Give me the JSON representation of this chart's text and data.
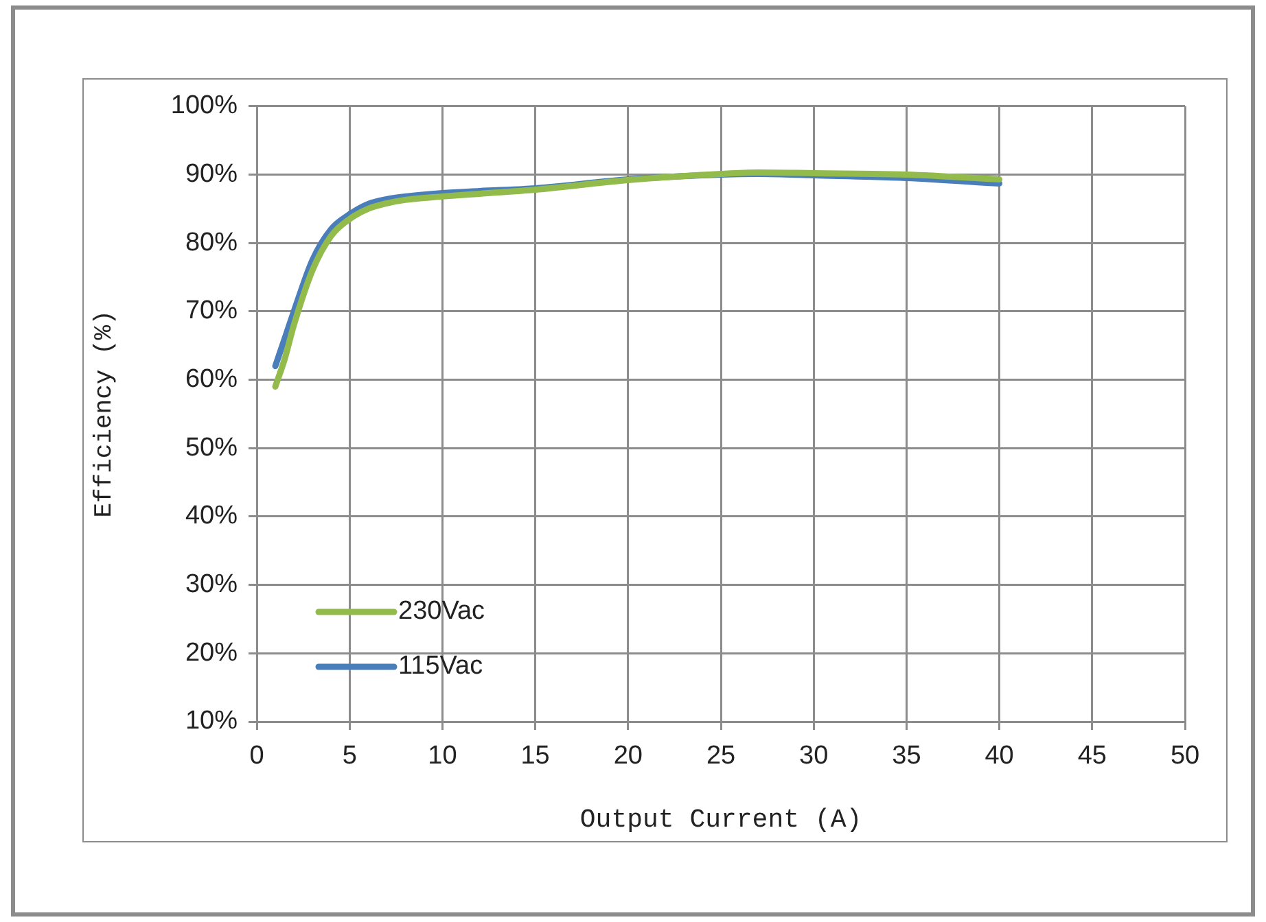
{
  "chart_data": {
    "type": "line",
    "xlabel": "Output Current (A)",
    "ylabel": "Efficiency (%)",
    "xlim": [
      0,
      50
    ],
    "xticks": [
      0,
      5,
      10,
      15,
      20,
      25,
      30,
      35,
      40,
      45,
      50
    ],
    "ylim": [
      10,
      100
    ],
    "yticks": [
      {
        "value": 10,
        "label": "10%"
      },
      {
        "value": 20,
        "label": "20%"
      },
      {
        "value": 30,
        "label": "30%"
      },
      {
        "value": 40,
        "label": "40%"
      },
      {
        "value": 50,
        "label": "50%"
      },
      {
        "value": 60,
        "label": "60%"
      },
      {
        "value": 70,
        "label": "70%"
      },
      {
        "value": 80,
        "label": "80%"
      },
      {
        "value": 90,
        "label": "90%"
      },
      {
        "value": 100,
        "label": "100%"
      }
    ],
    "grid": true,
    "legend": "bottom left",
    "marker": "none",
    "line_style": "solid",
    "x": [
      1,
      1.5,
      2,
      3,
      4,
      5,
      6,
      7,
      8,
      10,
      12,
      15,
      20,
      25,
      27,
      30,
      35,
      40
    ],
    "series": [
      {
        "name": "230Vac",
        "color": "#92bb4c",
        "values": [
          59,
          63,
          68,
          76,
          81,
          83.5,
          85,
          85.8,
          86.3,
          86.8,
          87.2,
          87.8,
          89.2,
          90.1,
          90.3,
          90.2,
          90,
          89.3
        ]
      },
      {
        "name": "115Vac",
        "color": "#4a7ebb",
        "values": [
          62,
          66,
          70,
          77.5,
          82,
          84.2,
          85.7,
          86.4,
          86.8,
          87.3,
          87.6,
          88,
          89.3,
          90,
          90.1,
          89.9,
          89.5,
          88.7
        ]
      }
    ]
  }
}
